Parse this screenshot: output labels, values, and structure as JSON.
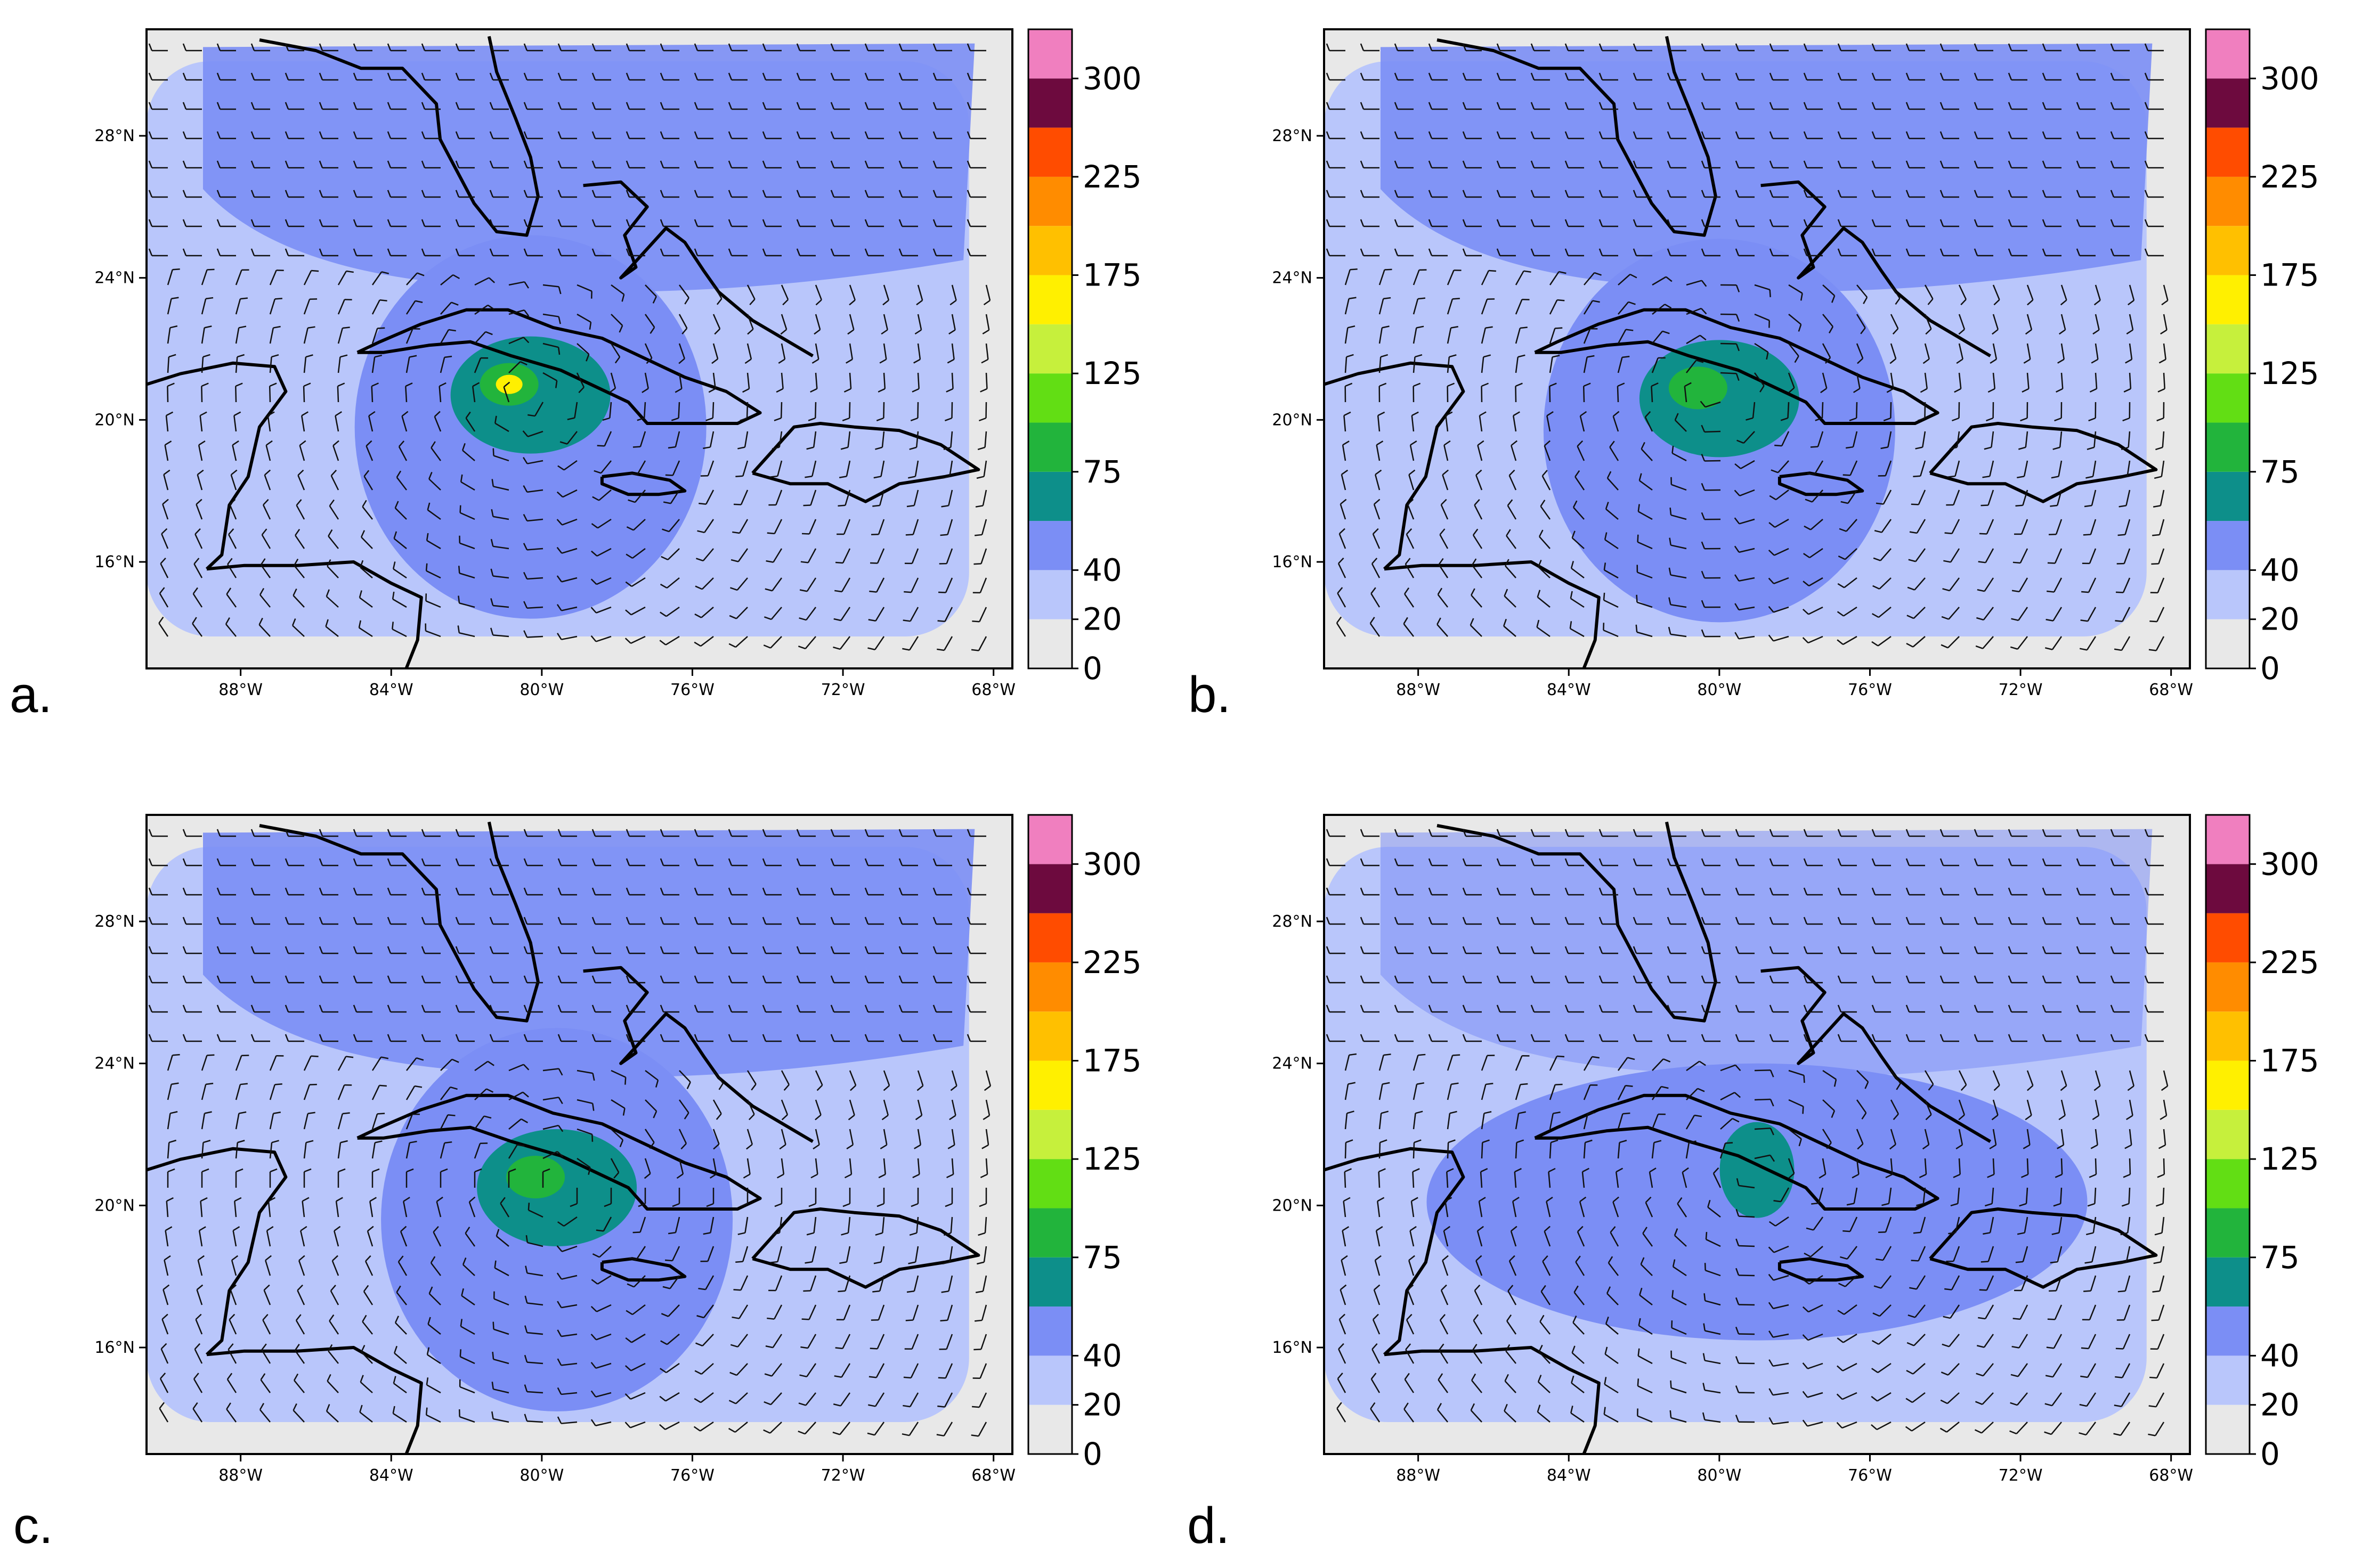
{
  "figure": {
    "colorbar": {
      "tick_labels": [
        "0",
        "20",
        "40",
        "75",
        "125",
        "175",
        "225",
        "300"
      ],
      "bounds": [
        0,
        20,
        40,
        60,
        75,
        100,
        125,
        150,
        175,
        200,
        225,
        250,
        300,
        325
      ],
      "colors": [
        "#e8e8e8",
        "#b9c6fb",
        "#7b8ef5",
        "#0d8f8a",
        "#22b43c",
        "#62de14",
        "#c6f03c",
        "#fff000",
        "#ffc000",
        "#ff8c00",
        "#ff4c00",
        "#6d0a3e",
        "#f07fbf"
      ]
    },
    "lon_ticks": [
      "88°W",
      "84°W",
      "80°W",
      "76°W",
      "72°W",
      "68°W"
    ],
    "lat_ticks": [
      "16°N",
      "20°N",
      "24°N",
      "28°N"
    ],
    "map_extent": {
      "lon_min": -90.5,
      "lon_max": -67.5,
      "lat_min": 13.0,
      "lat_max": 31.0
    },
    "panels": [
      {
        "id": "a",
        "label": "a.",
        "storm_center": [
          -80.3,
          20.7
        ],
        "band_levels": [
          3,
          2,
          1
        ]
      },
      {
        "id": "b",
        "label": "b.",
        "storm_center": [
          -80.0,
          20.6
        ],
        "band_levels": [
          3,
          2,
          1
        ]
      },
      {
        "id": "c",
        "label": "c.",
        "storm_center": [
          -79.6,
          20.5
        ],
        "band_levels": [
          3,
          2,
          1
        ]
      },
      {
        "id": "d",
        "label": "d.",
        "storm_center": [
          -79.0,
          21.0
        ],
        "band_levels": [
          3,
          2,
          1
        ]
      }
    ]
  }
}
